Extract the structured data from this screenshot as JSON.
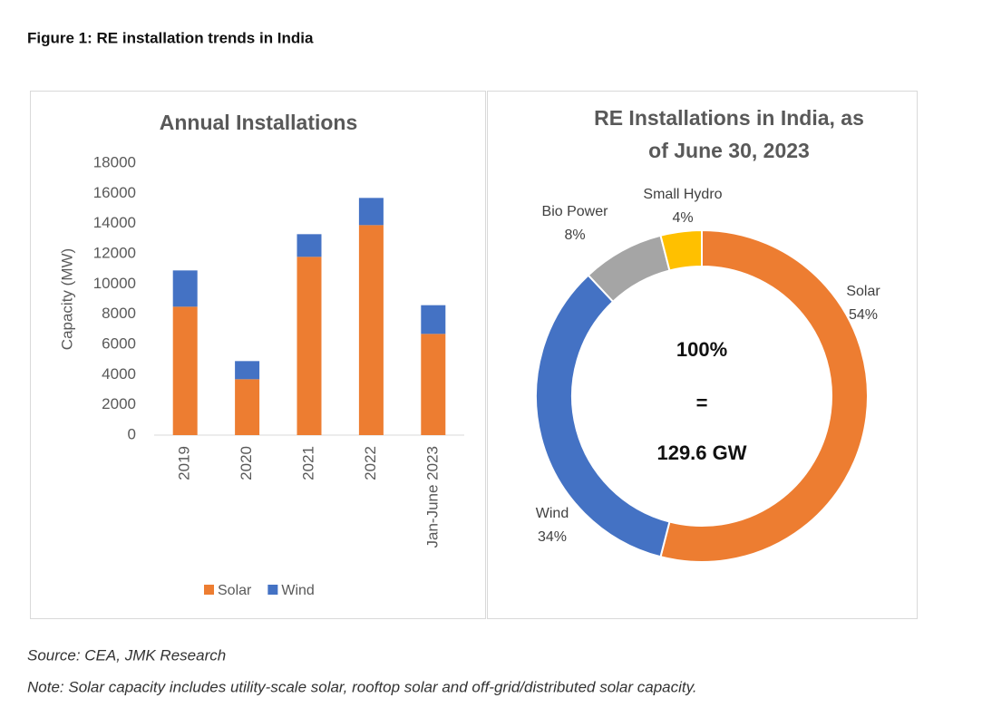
{
  "header": {
    "title": "Figure 1: RE installation trends in India"
  },
  "chart_data": [
    {
      "type": "bar",
      "stacked": true,
      "title": "Annual Installations",
      "y_label": "Capacity (MW)",
      "categories": [
        "2019",
        "2020",
        "2021",
        "2022",
        "Jan-June 2023"
      ],
      "series": [
        {
          "name": "Solar",
          "color": "#ed7d31",
          "values": [
            8500,
            3700,
            11800,
            13900,
            6700
          ]
        },
        {
          "name": "Wind",
          "color": "#4472c4",
          "values": [
            2400,
            1200,
            1500,
            1800,
            1900
          ]
        }
      ],
      "ylim": [
        0,
        18000
      ],
      "yticks": [
        0,
        2000,
        4000,
        6000,
        8000,
        10000,
        12000,
        14000,
        16000,
        18000
      ],
      "grid": false,
      "legend": "bottom"
    },
    {
      "type": "pie",
      "donut": true,
      "title": [
        "RE Installations in India, as",
        "of June 30, 2023"
      ],
      "categories": [
        "Solar",
        "Wind",
        "Bio Power",
        "Small Hydro"
      ],
      "values": [
        54,
        34,
        8,
        4
      ],
      "value_labels": [
        "54%",
        "34%",
        "8%",
        "4%"
      ],
      "colors": [
        "#ed7d31",
        "#4472c4",
        "#a5a5a5",
        "#ffc000"
      ],
      "annotations": [
        "100%",
        "=",
        "129.6 GW"
      ]
    }
  ],
  "footer": {
    "source": "Source: CEA, JMK Research",
    "note": "Note: Solar capacity includes utility-scale solar, rooftop solar and off-grid/distributed solar capacity."
  }
}
